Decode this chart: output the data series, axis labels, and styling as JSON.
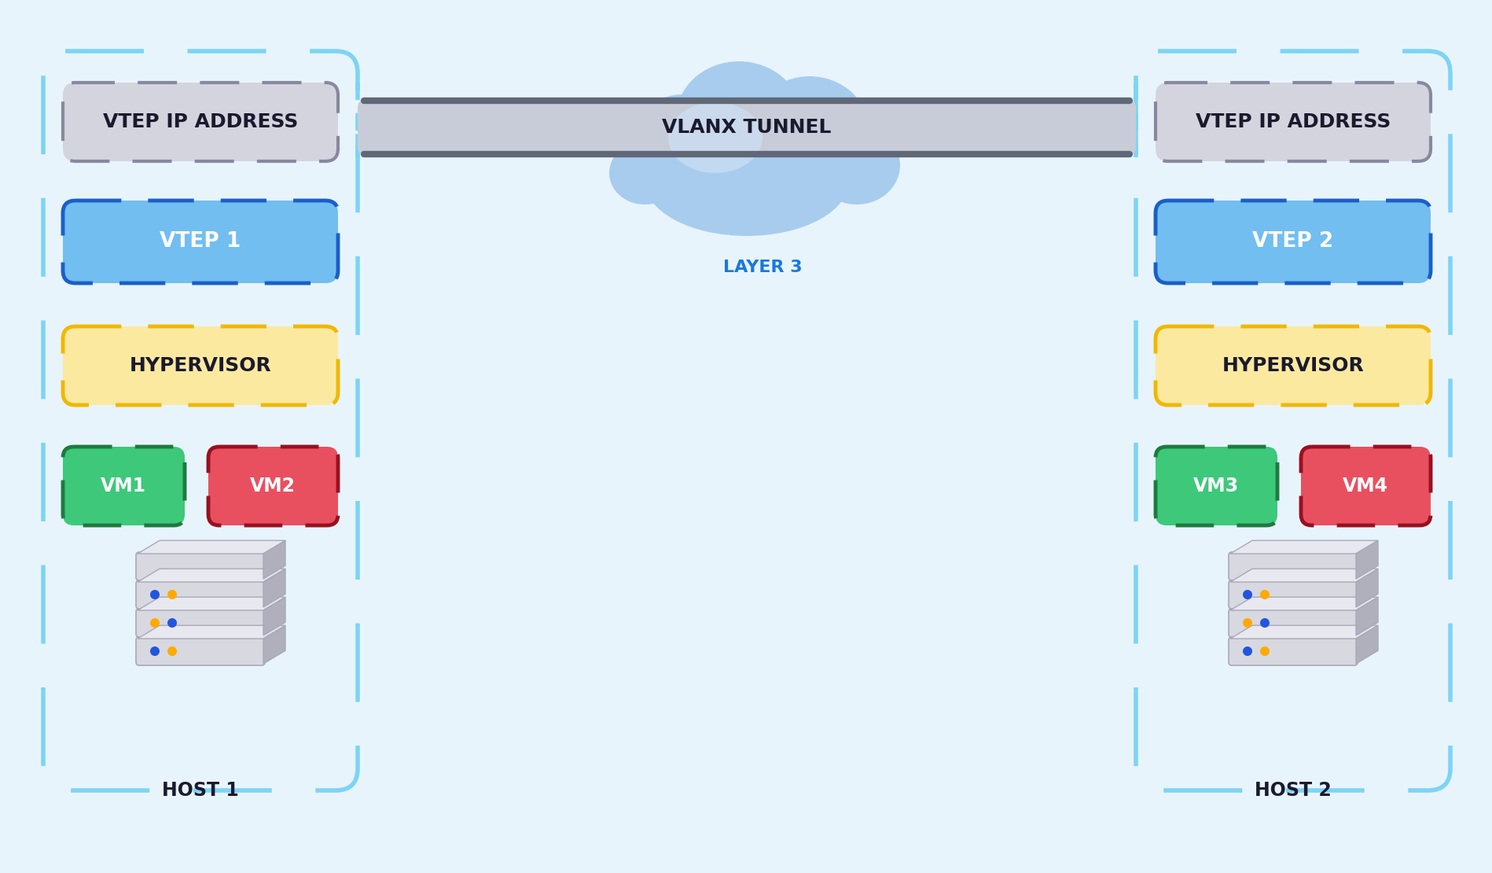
{
  "bg_color": "#e8f4fc",
  "host1_label": "HOST 1",
  "host2_label": "HOST 2",
  "vtep_ip_label": "VTEP IP ADDRESS",
  "vtep1_label": "VTEP 1",
  "vtep2_label": "VTEP 2",
  "hypervisor_label": "HYPERVISOR",
  "vm1_label": "VM1",
  "vm2_label": "VM2",
  "vm3_label": "VM3",
  "vm4_label": "VM4",
  "tunnel_label": "VLANX TUNNEL",
  "layer3_label": "LAYER 3",
  "outer_dash_color": "#7dd4f5",
  "vtep_ip_face": "#d4d4de",
  "vtep_ip_edge": "#8888a0",
  "vtep1_face": "#72bef0",
  "vtep1_edge": "#1a5fc8",
  "hyp_face": "#fce9a0",
  "hyp_edge": "#f0b800",
  "vm1_face": "#3dc87a",
  "vm1_edge": "#1e7a40",
  "vm2_face": "#e85060",
  "vm2_edge": "#991020",
  "tunnel_face": "#c8ccd8",
  "tunnel_top_bot": "#606878",
  "cloud_main": "#a8ccee",
  "cloud_light": "#cce0f5",
  "text_dark": "#1a1a2e",
  "text_blue": "#1878e0",
  "server_body": "#d8d8e0",
  "server_shadow": "#b0b0bc",
  "server_top": "#e8e8f0"
}
